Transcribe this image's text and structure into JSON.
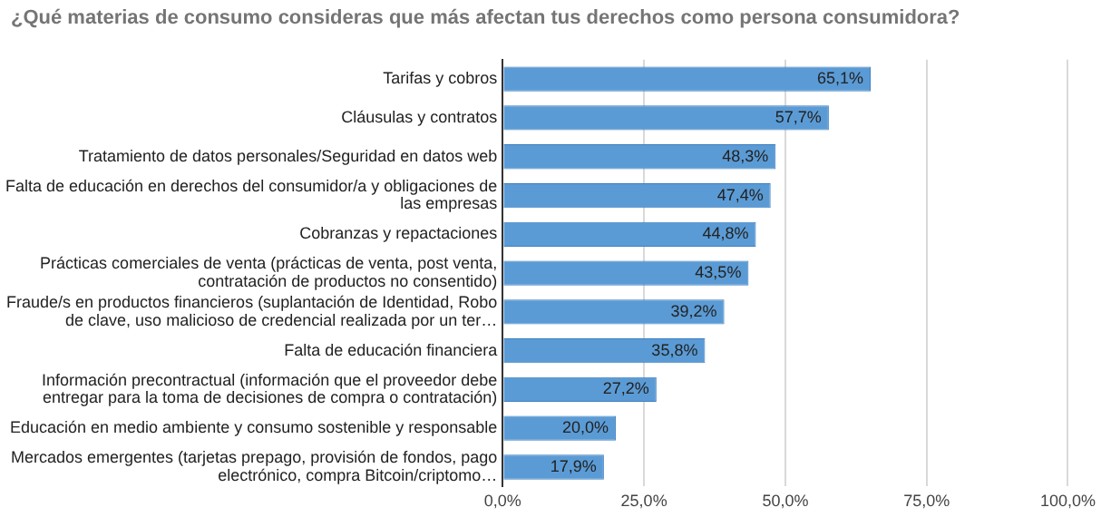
{
  "chart_data": {
    "type": "bar",
    "orientation": "horizontal",
    "title": "¿Qué materias de consumo consideras que más afectan tus derechos como persona consumidora?",
    "categories": [
      "Tarifas y cobros",
      "Cláusulas y contratos",
      "Tratamiento de datos personales/Seguridad en datos web",
      "Falta de educación en derechos del consumidor/a y obligaciones de las empresas",
      "Cobranzas y repactaciones",
      "Prácticas comerciales de venta (prácticas de venta, post venta, contratación de productos no consentido)",
      "Fraude/s en productos financieros (suplantación de Identidad, Robo de clave, uso malicioso de credencial realizada por un ter…",
      "Falta de educación financiera",
      "Información precontractual (información que el proveedor debe entregar para la toma de decisiones de compra o contratación)",
      "Educación en medio ambiente y consumo sostenible y responsable",
      "Mercados emergentes (tarjetas prepago, provisión de fondos, pago electrónico, compra Bitcoin/criptomo…"
    ],
    "values": [
      65.1,
      57.7,
      48.3,
      47.4,
      44.8,
      43.5,
      39.2,
      35.8,
      27.2,
      20.0,
      17.9
    ],
    "value_labels": [
      "65,1%",
      "57,7%",
      "48,3%",
      "47,4%",
      "44,8%",
      "43,5%",
      "39,2%",
      "35,8%",
      "27,2%",
      "20,0%",
      "17,9%"
    ],
    "color": "#5b9bd5",
    "xlim": [
      0,
      100
    ],
    "xticks": [
      {
        "value": 0,
        "label": "0,0%"
      },
      {
        "value": 25,
        "label": "25,0%"
      },
      {
        "value": 50,
        "label": "50,0%"
      },
      {
        "value": 75,
        "label": "75,0%"
      },
      {
        "value": 100,
        "label": "100,0%"
      }
    ],
    "grid": "x",
    "legend": false
  }
}
